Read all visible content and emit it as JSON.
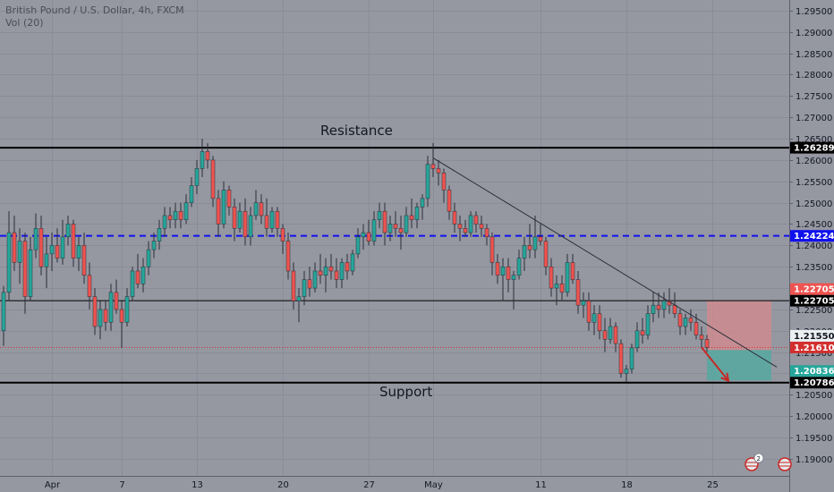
{
  "header": {
    "title": "British Pound / U.S. Dollar, 4h, FXCM",
    "volume": "Vol (20)"
  },
  "colors": {
    "background": "#9598a1",
    "grid": "#8a8d97",
    "up": "#26a69a",
    "down": "#ef5350",
    "wick": "#2a2e39",
    "support_resistance": "#000000",
    "dashed_level": "#1010ee",
    "trendline": "#2a2e39",
    "stop_zone": "#d68a8e",
    "target_zone": "#57a8a0",
    "current_price": "#d32f2f",
    "forecast_arrow": "#c62828"
  },
  "annotations": {
    "resistance": "Resistance",
    "support": "Support"
  },
  "badge": {
    "count": "2"
  },
  "chart_data": {
    "type": "candlestick",
    "symbol": "British Pound / U.S. Dollar",
    "interval": "4h",
    "exchange": "FXCM",
    "y_range": [
      1.186,
      1.2975
    ],
    "y_ticks": [
      "1.29500",
      "1.29000",
      "1.28500",
      "1.28000",
      "1.27500",
      "1.27000",
      "1.26500",
      "1.26000",
      "1.25500",
      "1.25000",
      "1.24500",
      "1.24000",
      "1.23500",
      "1.23000",
      "1.22500",
      "1.22000",
      "1.21500",
      "1.21000",
      "1.20500",
      "1.20000",
      "1.19500",
      "1.19000"
    ],
    "x_labels": [
      {
        "label": "Apr",
        "index": 9
      },
      {
        "label": "7",
        "index": 22
      },
      {
        "label": "13",
        "index": 36
      },
      {
        "label": "20",
        "index": 52
      },
      {
        "label": "27",
        "index": 68
      },
      {
        "label": "May",
        "index": 80
      },
      {
        "label": "11",
        "index": 100
      },
      {
        "label": "18",
        "index": 116
      },
      {
        "label": "25",
        "index": 132
      }
    ],
    "levels": [
      {
        "name": "resistance",
        "price": 1.26289,
        "label": "1.26289",
        "style": "solid-thick"
      },
      {
        "name": "dashed-level",
        "price": 1.24224,
        "label": "1.24224",
        "style": "dashed"
      },
      {
        "name": "mid-level",
        "price": 1.22705,
        "label": "1.22705",
        "style": "solid"
      },
      {
        "name": "support",
        "price": 1.20786,
        "label": "1.20786",
        "style": "solid-thick"
      }
    ],
    "price_tags": [
      {
        "name": "stop-level",
        "price": 1.22705,
        "label": "1.22705",
        "bg": "#ef5350",
        "fg": "#ffffff"
      },
      {
        "name": "current-price",
        "price": 1.2161,
        "label": "1.21610",
        "bg": "#d32f2f",
        "fg": "#ffffff"
      },
      {
        "name": "entry-price",
        "price": 1.2155,
        "label": "1.21550",
        "bg": "#eceff1",
        "fg": "#131722"
      },
      {
        "name": "target-price",
        "price": 1.20836,
        "label": "1.20836",
        "bg": "#26a69a",
        "fg": "#ffffff"
      }
    ],
    "position": {
      "entry": 1.2155,
      "stop": 1.22705,
      "target": 1.20836,
      "start_index": 131,
      "end_index": 143
    },
    "trendline": [
      {
        "index": 80,
        "price": 1.2605
      },
      {
        "index": 144,
        "price": 1.2115
      }
    ],
    "forecast_arrow": [
      {
        "index": 130,
        "price": 1.2161
      },
      {
        "index": 135,
        "price": 1.2083
      }
    ],
    "candles": [
      [
        1.22,
        1.2305,
        1.2165,
        1.229
      ],
      [
        1.229,
        1.248,
        1.227,
        1.243
      ],
      [
        1.243,
        1.247,
        1.234,
        1.236
      ],
      [
        1.236,
        1.244,
        1.231,
        1.241
      ],
      [
        1.241,
        1.243,
        1.224,
        1.228
      ],
      [
        1.228,
        1.242,
        1.227,
        1.239
      ],
      [
        1.239,
        1.2475,
        1.237,
        1.244
      ],
      [
        1.244,
        1.247,
        1.233,
        1.235
      ],
      [
        1.235,
        1.242,
        1.23,
        1.238
      ],
      [
        1.238,
        1.243,
        1.234,
        1.24
      ],
      [
        1.24,
        1.244,
        1.236,
        1.237
      ],
      [
        1.237,
        1.246,
        1.2355,
        1.242
      ],
      [
        1.242,
        1.247,
        1.24,
        1.245
      ],
      [
        1.245,
        1.246,
        1.235,
        1.237
      ],
      [
        1.237,
        1.242,
        1.234,
        1.24
      ],
      [
        1.24,
        1.243,
        1.231,
        1.233
      ],
      [
        1.233,
        1.236,
        1.225,
        1.228
      ],
      [
        1.228,
        1.23,
        1.219,
        1.221
      ],
      [
        1.221,
        1.227,
        1.218,
        1.225
      ],
      [
        1.225,
        1.227,
        1.22,
        1.222
      ],
      [
        1.222,
        1.231,
        1.22,
        1.229
      ],
      [
        1.229,
        1.232,
        1.224,
        1.225
      ],
      [
        1.225,
        1.227,
        1.216,
        1.222
      ],
      [
        1.222,
        1.23,
        1.221,
        1.228
      ],
      [
        1.228,
        1.235,
        1.227,
        1.234
      ],
      [
        1.234,
        1.238,
        1.23,
        1.231
      ],
      [
        1.231,
        1.237,
        1.229,
        1.235
      ],
      [
        1.235,
        1.241,
        1.233,
        1.239
      ],
      [
        1.239,
        1.243,
        1.237,
        1.241
      ],
      [
        1.241,
        1.246,
        1.239,
        1.244
      ],
      [
        1.244,
        1.249,
        1.242,
        1.247
      ],
      [
        1.247,
        1.249,
        1.244,
        1.246
      ],
      [
        1.246,
        1.25,
        1.244,
        1.248
      ],
      [
        1.248,
        1.25,
        1.244,
        1.246
      ],
      [
        1.246,
        1.252,
        1.245,
        1.25
      ],
      [
        1.25,
        1.256,
        1.249,
        1.254
      ],
      [
        1.254,
        1.26,
        1.252,
        1.258
      ],
      [
        1.258,
        1.265,
        1.256,
        1.262
      ],
      [
        1.262,
        1.264,
        1.258,
        1.26
      ],
      [
        1.26,
        1.261,
        1.249,
        1.251
      ],
      [
        1.251,
        1.253,
        1.242,
        1.245
      ],
      [
        1.245,
        1.255,
        1.244,
        1.253
      ],
      [
        1.253,
        1.254,
        1.247,
        1.249
      ],
      [
        1.249,
        1.251,
        1.241,
        1.244
      ],
      [
        1.244,
        1.25,
        1.243,
        1.248
      ],
      [
        1.248,
        1.251,
        1.24,
        1.242
      ],
      [
        1.242,
        1.249,
        1.24,
        1.247
      ],
      [
        1.247,
        1.253,
        1.246,
        1.25
      ],
      [
        1.25,
        1.252,
        1.245,
        1.247
      ],
      [
        1.247,
        1.251,
        1.242,
        1.244
      ],
      [
        1.244,
        1.249,
        1.243,
        1.248
      ],
      [
        1.248,
        1.249,
        1.242,
        1.244
      ],
      [
        1.244,
        1.245,
        1.238,
        1.241
      ],
      [
        1.241,
        1.243,
        1.232,
        1.234
      ],
      [
        1.234,
        1.236,
        1.225,
        1.227
      ],
      [
        1.227,
        1.23,
        1.222,
        1.228
      ],
      [
        1.228,
        1.234,
        1.226,
        1.232
      ],
      [
        1.232,
        1.235,
        1.228,
        1.23
      ],
      [
        1.23,
        1.236,
        1.229,
        1.234
      ],
      [
        1.234,
        1.238,
        1.231,
        1.233
      ],
      [
        1.233,
        1.237,
        1.229,
        1.235
      ],
      [
        1.235,
        1.238,
        1.232,
        1.234
      ],
      [
        1.234,
        1.237,
        1.23,
        1.232
      ],
      [
        1.232,
        1.237,
        1.23,
        1.236
      ],
      [
        1.236,
        1.238,
        1.232,
        1.234
      ],
      [
        1.234,
        1.239,
        1.233,
        1.238
      ],
      [
        1.238,
        1.244,
        1.237,
        1.242
      ],
      [
        1.242,
        1.245,
        1.239,
        1.243
      ],
      [
        1.243,
        1.246,
        1.24,
        1.241
      ],
      [
        1.241,
        1.248,
        1.24,
        1.246
      ],
      [
        1.246,
        1.25,
        1.244,
        1.248
      ],
      [
        1.248,
        1.25,
        1.24,
        1.243
      ],
      [
        1.243,
        1.247,
        1.241,
        1.245
      ],
      [
        1.245,
        1.248,
        1.242,
        1.244
      ],
      [
        1.244,
        1.247,
        1.239,
        1.243
      ],
      [
        1.243,
        1.249,
        1.242,
        1.247
      ],
      [
        1.247,
        1.251,
        1.244,
        1.246
      ],
      [
        1.246,
        1.25,
        1.244,
        1.249
      ],
      [
        1.249,
        1.252,
        1.246,
        1.251
      ],
      [
        1.251,
        1.261,
        1.249,
        1.259
      ],
      [
        1.259,
        1.264,
        1.256,
        1.258
      ],
      [
        1.258,
        1.26,
        1.254,
        1.257
      ],
      [
        1.257,
        1.258,
        1.25,
        1.253
      ],
      [
        1.253,
        1.254,
        1.246,
        1.248
      ],
      [
        1.248,
        1.25,
        1.243,
        1.245
      ],
      [
        1.245,
        1.247,
        1.241,
        1.244
      ],
      [
        1.244,
        1.246,
        1.242,
        1.243
      ],
      [
        1.243,
        1.248,
        1.242,
        1.247
      ],
      [
        1.247,
        1.248,
        1.243,
        1.245
      ],
      [
        1.245,
        1.247,
        1.242,
        1.244
      ],
      [
        1.244,
        1.245,
        1.24,
        1.242
      ],
      [
        1.242,
        1.243,
        1.233,
        1.236
      ],
      [
        1.236,
        1.238,
        1.231,
        1.233
      ],
      [
        1.233,
        1.237,
        1.227,
        1.235
      ],
      [
        1.235,
        1.237,
        1.229,
        1.232
      ],
      [
        1.232,
        1.234,
        1.225,
        1.233
      ],
      [
        1.233,
        1.239,
        1.232,
        1.237
      ],
      [
        1.237,
        1.242,
        1.234,
        1.24
      ],
      [
        1.24,
        1.245,
        1.237,
        1.239
      ],
      [
        1.239,
        1.247,
        1.237,
        1.242
      ],
      [
        1.242,
        1.245,
        1.24,
        1.241
      ],
      [
        1.241,
        1.242,
        1.233,
        1.235
      ],
      [
        1.235,
        1.237,
        1.228,
        1.23
      ],
      [
        1.23,
        1.233,
        1.226,
        1.231
      ],
      [
        1.231,
        1.233,
        1.227,
        1.229
      ],
      [
        1.229,
        1.238,
        1.228,
        1.236
      ],
      [
        1.236,
        1.238,
        1.231,
        1.232
      ],
      [
        1.232,
        1.234,
        1.224,
        1.226
      ],
      [
        1.226,
        1.229,
        1.223,
        1.227
      ],
      [
        1.227,
        1.229,
        1.22,
        1.222
      ],
      [
        1.222,
        1.226,
        1.219,
        1.224
      ],
      [
        1.224,
        1.226,
        1.218,
        1.22
      ],
      [
        1.22,
        1.223,
        1.215,
        1.218
      ],
      [
        1.218,
        1.223,
        1.217,
        1.221
      ],
      [
        1.221,
        1.222,
        1.215,
        1.217
      ],
      [
        1.217,
        1.218,
        1.209,
        1.21
      ],
      [
        1.21,
        1.212,
        1.208,
        1.211
      ],
      [
        1.211,
        1.217,
        1.21,
        1.216
      ],
      [
        1.216,
        1.222,
        1.215,
        1.22
      ],
      [
        1.22,
        1.223,
        1.217,
        1.219
      ],
      [
        1.219,
        1.226,
        1.218,
        1.224
      ],
      [
        1.224,
        1.229,
        1.222,
        1.226
      ],
      [
        1.226,
        1.229,
        1.223,
        1.225
      ],
      [
        1.225,
        1.229,
        1.223,
        1.227
      ],
      [
        1.227,
        1.23,
        1.224,
        1.226
      ],
      [
        1.226,
        1.229,
        1.223,
        1.224
      ],
      [
        1.224,
        1.225,
        1.219,
        1.221
      ],
      [
        1.221,
        1.224,
        1.219,
        1.223
      ],
      [
        1.223,
        1.225,
        1.22,
        1.222
      ],
      [
        1.222,
        1.224,
        1.218,
        1.219
      ],
      [
        1.219,
        1.221,
        1.216,
        1.218
      ],
      [
        1.218,
        1.219,
        1.215,
        1.2161
      ]
    ]
  }
}
